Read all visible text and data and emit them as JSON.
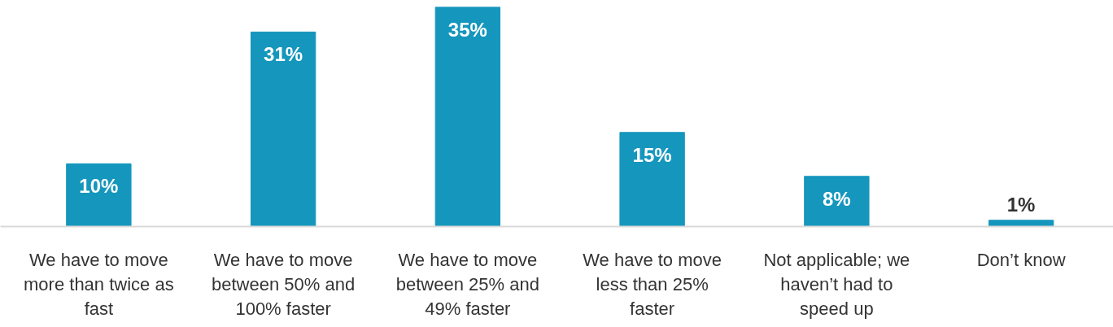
{
  "chart_data": {
    "type": "bar",
    "categories": [
      "We have to move more than twice as fast",
      "We have to move between 50% and 100% faster",
      "We have to move between 25% and 49% faster",
      "We have to move less than 25% faster",
      "Not applicable; we haven’t had to speed up",
      "Don’t know"
    ],
    "values": [
      10,
      31,
      35,
      15,
      8,
      1
    ],
    "value_labels": [
      "10%",
      "31%",
      "35%",
      "15%",
      "8%",
      "1%"
    ],
    "color": "#1596bd",
    "ylim": [
      0,
      35
    ],
    "grid": false
  }
}
